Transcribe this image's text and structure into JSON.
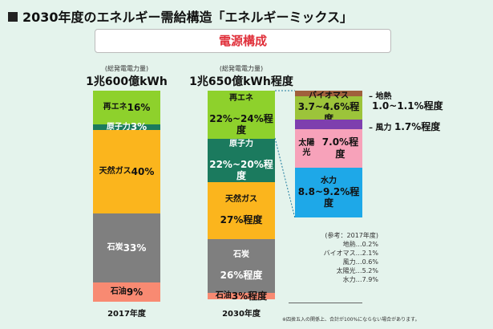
{
  "title": "2030年度のエネルギー需給構造「エネルギーミックス」",
  "subtitle": "電源構成",
  "chart_data": {
    "type": "stacked-bar",
    "categories": [
      "2017年度",
      "2030年度"
    ],
    "totals": [
      {
        "label": "(総発電電力量)",
        "value": "1兆600億kWh"
      },
      {
        "label": "(総発電電力量)",
        "value": "1兆650億kWh程度"
      }
    ],
    "series": [
      {
        "name": "再エネ",
        "values": [
          16,
          [
            22,
            24
          ]
        ],
        "labels": [
          "16%",
          "22%~24%程度"
        ],
        "color": "#8ed12c"
      },
      {
        "name": "原子力",
        "values": [
          3,
          [
            20,
            22
          ]
        ],
        "labels": [
          "3%",
          "22%~20%程度"
        ],
        "color": "#1b7a5e"
      },
      {
        "name": "天然ガス",
        "values": [
          40,
          27
        ],
        "labels": [
          "40%",
          "27%程度"
        ],
        "color": "#fbb51d"
      },
      {
        "name": "石炭",
        "values": [
          33,
          26
        ],
        "labels": [
          "33%",
          "26%程度"
        ],
        "color": "#7f7f7f"
      },
      {
        "name": "石油",
        "values": [
          9,
          3
        ],
        "labels": [
          "9%",
          "3%程度"
        ],
        "color": "#f88a72"
      }
    ],
    "renewables_breakdown_2030": [
      {
        "name": "地熱",
        "value": [
          1.0,
          1.1
        ],
        "label": "1.0~1.1%程度",
        "color": "#a0603c"
      },
      {
        "name": "バイオマス",
        "value": [
          3.7,
          4.6
        ],
        "label": "3.7~4.6%程度",
        "color": "#9cc43a"
      },
      {
        "name": "風力",
        "value": 1.7,
        "label": "1.7%程度",
        "color": "#7e3fae"
      },
      {
        "name": "太陽光",
        "value": 7.0,
        "label": "7.0%程度",
        "color": "#f7a2ba"
      },
      {
        "name": "水力",
        "value": [
          8.8,
          9.2
        ],
        "label": "8.8~9.2%程度",
        "color": "#1ea8e8"
      }
    ],
    "reference_2017": {
      "title": "(参考：2017年度)",
      "items": [
        "地熱…0.2%",
        "バイオマス…2.1%",
        "風力…0.6%",
        "太陽光…5.2%",
        "水力…7.9%"
      ]
    },
    "footnote": "※四捨五入の関係上、合計が100%にならない場合があります。"
  }
}
